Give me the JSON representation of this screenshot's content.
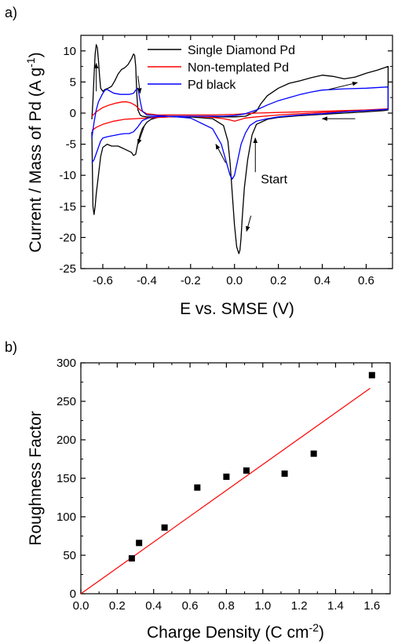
{
  "chart_data": [
    {
      "panel_label": "a)",
      "type": "line",
      "title": "",
      "xlabel": "E vs. SMSE (V)",
      "ylabel_main": "Current / Mass of Pd (A g",
      "ylabel_sup": "-1",
      "ylabel_end": ")",
      "xlim": [
        -0.7,
        0.72
      ],
      "ylim": [
        -25,
        12.5
      ],
      "xticks": [
        -0.6,
        -0.4,
        -0.2,
        0.0,
        0.2,
        0.4,
        0.6
      ],
      "xtick_labels": [
        "-0.6",
        "-0.4",
        "-0.2",
        "0.0",
        "0.2",
        "0.4",
        "0.6"
      ],
      "yticks": [
        -25,
        -20,
        -15,
        -10,
        -5,
        0,
        5,
        10
      ],
      "ytick_labels": [
        "-25",
        "-20",
        "-15",
        "-10",
        "-5",
        "0",
        "5",
        "10"
      ],
      "legend_position": "top-right",
      "series": [
        {
          "name": "Single Diamond Pd",
          "color": "#000000",
          "x": [
            -0.65,
            -0.645,
            -0.64,
            -0.635,
            -0.63,
            -0.625,
            -0.62,
            -0.615,
            -0.61,
            -0.6,
            -0.59,
            -0.575,
            -0.56,
            -0.545,
            -0.53,
            -0.515,
            -0.5,
            -0.485,
            -0.47,
            -0.46,
            -0.455,
            -0.45,
            -0.445,
            -0.44,
            -0.43,
            -0.42,
            -0.4,
            -0.35,
            -0.3,
            -0.2,
            -0.1,
            -0.05,
            0.0,
            0.05,
            0.1,
            0.12,
            0.15,
            0.2,
            0.25,
            0.3,
            0.35,
            0.4,
            0.45,
            0.5,
            0.55,
            0.6,
            0.65,
            0.7,
            0.7,
            0.68,
            0.6,
            0.5,
            0.4,
            0.3,
            0.2,
            0.15,
            0.1,
            0.08,
            0.06,
            0.045,
            0.035,
            0.03,
            0.025,
            0.02,
            0.01,
            0.0,
            -0.01,
            -0.02,
            -0.03,
            -0.05,
            -0.1,
            -0.2,
            -0.3,
            -0.35,
            -0.38,
            -0.4,
            -0.42,
            -0.43,
            -0.44,
            -0.45,
            -0.46,
            -0.47,
            -0.5,
            -0.53,
            -0.56,
            -0.58,
            -0.6,
            -0.61,
            -0.62,
            -0.63,
            -0.635,
            -0.64,
            -0.645,
            -0.65
          ],
          "y": [
            -1.0,
            2.0,
            6.0,
            9.5,
            11.0,
            10.5,
            8.5,
            6.0,
            4.0,
            3.5,
            3.8,
            4.0,
            4.3,
            5.2,
            6.3,
            7.0,
            7.3,
            7.8,
            8.7,
            9.5,
            9.3,
            7.5,
            3.0,
            0.5,
            -0.3,
            -0.5,
            -0.6,
            -0.6,
            -0.6,
            -0.6,
            -0.6,
            -0.6,
            -0.6,
            -0.5,
            0.3,
            1.5,
            2.8,
            4.0,
            4.8,
            5.2,
            5.7,
            6.1,
            5.9,
            5.5,
            5.8,
            6.4,
            6.9,
            7.5,
            0.5,
            0.4,
            0.2,
            0.0,
            -0.2,
            -0.4,
            -0.7,
            -1.0,
            -1.8,
            -3.5,
            -7.5,
            -12.0,
            -17.0,
            -20.0,
            -22.0,
            -22.6,
            -21.5,
            -18.0,
            -13.0,
            -8.0,
            -4.5,
            -2.0,
            -0.9,
            -0.6,
            -0.6,
            -0.7,
            -1.0,
            -1.5,
            -2.5,
            -3.5,
            -4.8,
            -6.6,
            -6.8,
            -6.3,
            -5.8,
            -5.3,
            -5.3,
            -5.0,
            -5.5,
            -7.0,
            -10.0,
            -13.0,
            -15.0,
            -16.3,
            -15.0,
            -3.0
          ]
        },
        {
          "name": "Non-templated Pd",
          "color": "#ff0000",
          "x": [
            -0.65,
            -0.63,
            -0.6,
            -0.57,
            -0.54,
            -0.51,
            -0.49,
            -0.47,
            -0.45,
            -0.43,
            -0.4,
            -0.35,
            -0.3,
            -0.2,
            -0.1,
            0.0,
            0.1,
            0.2,
            0.3,
            0.4,
            0.5,
            0.6,
            0.7,
            0.7,
            0.6,
            0.5,
            0.4,
            0.3,
            0.2,
            0.1,
            0.05,
            0.02,
            0.0,
            -0.02,
            -0.05,
            -0.1,
            -0.2,
            -0.3,
            -0.4,
            -0.5,
            -0.55,
            -0.6,
            -0.63,
            -0.65
          ],
          "y": [
            -0.5,
            0.2,
            0.9,
            1.3,
            1.6,
            1.8,
            1.8,
            1.6,
            1.2,
            0.5,
            -0.1,
            -0.3,
            -0.3,
            -0.3,
            -0.3,
            -0.2,
            0.0,
            0.1,
            0.2,
            0.3,
            0.4,
            0.5,
            0.6,
            0.7,
            0.5,
            0.3,
            0.1,
            -0.1,
            -0.3,
            -0.6,
            -0.8,
            -1.1,
            -1.3,
            -1.1,
            -0.9,
            -0.7,
            -0.5,
            -0.6,
            -0.8,
            -1.0,
            -1.3,
            -1.8,
            -2.3,
            -2.8
          ]
        },
        {
          "name": "Pd black",
          "color": "#0000ff",
          "x": [
            -0.65,
            -0.64,
            -0.63,
            -0.62,
            -0.61,
            -0.6,
            -0.59,
            -0.58,
            -0.57,
            -0.55,
            -0.52,
            -0.5,
            -0.48,
            -0.46,
            -0.45,
            -0.44,
            -0.43,
            -0.42,
            -0.4,
            -0.3,
            -0.2,
            -0.1,
            -0.05,
            0.0,
            0.05,
            0.1,
            0.15,
            0.2,
            0.25,
            0.3,
            0.35,
            0.4,
            0.5,
            0.6,
            0.7,
            0.7,
            0.6,
            0.5,
            0.4,
            0.3,
            0.2,
            0.15,
            0.1,
            0.07,
            0.05,
            0.03,
            0.015,
            0.0,
            -0.01,
            -0.02,
            -0.04,
            -0.06,
            -0.1,
            -0.2,
            -0.3,
            -0.38,
            -0.42,
            -0.44,
            -0.46,
            -0.48,
            -0.5,
            -0.52,
            -0.55,
            -0.58,
            -0.6,
            -0.61,
            -0.62,
            -0.63,
            -0.64,
            -0.65
          ],
          "y": [
            -4.0,
            -1.5,
            0.5,
            1.8,
            2.5,
            3.2,
            3.7,
            3.8,
            3.6,
            3.2,
            3.0,
            3.0,
            3.0,
            3.2,
            3.7,
            4.0,
            2.0,
            0.3,
            -0.3,
            -0.5,
            -0.5,
            -0.5,
            -0.5,
            -0.4,
            -0.1,
            0.5,
            1.3,
            2.0,
            2.5,
            3.0,
            3.4,
            3.7,
            3.9,
            4.0,
            4.2,
            0.6,
            0.4,
            0.2,
            -0.1,
            -0.3,
            -0.6,
            -0.9,
            -1.3,
            -2.0,
            -3.2,
            -5.0,
            -7.5,
            -10.0,
            -10.6,
            -10.0,
            -7.5,
            -5.0,
            -2.5,
            -0.8,
            -0.5,
            -0.6,
            -1.2,
            -2.2,
            -3.0,
            -3.3,
            -3.3,
            -3.4,
            -3.6,
            -3.8,
            -4.0,
            -4.5,
            -5.5,
            -6.5,
            -7.5,
            -8.0
          ]
        }
      ],
      "annotations": [
        {
          "text": "Start",
          "x": 0.12,
          "y": -11.3
        },
        {
          "arrow": true,
          "from": [
            -0.63,
            3.5
          ],
          "to": [
            -0.63,
            8.0
          ]
        },
        {
          "arrow": true,
          "from": [
            -0.44,
            6.0
          ],
          "to": [
            -0.43,
            3.2
          ]
        },
        {
          "arrow": true,
          "from": [
            -0.41,
            -2.0
          ],
          "to": [
            -0.44,
            -5.0
          ]
        },
        {
          "arrow": true,
          "from": [
            -0.04,
            -8.0
          ],
          "to": [
            -0.085,
            -5.0
          ]
        },
        {
          "arrow": true,
          "from": [
            0.075,
            -16.5
          ],
          "to": [
            0.055,
            -19.0
          ]
        },
        {
          "arrow": true,
          "from": [
            0.095,
            -9.5
          ],
          "to": [
            0.095,
            -4.0
          ]
        },
        {
          "arrow": true,
          "from": [
            0.43,
            3.8
          ],
          "to": [
            0.56,
            4.9
          ]
        },
        {
          "arrow": true,
          "from": [
            0.55,
            -0.9
          ],
          "to": [
            0.4,
            -0.9
          ]
        }
      ]
    },
    {
      "panel_label": "b)",
      "type": "scatter",
      "title": "",
      "xlabel_main": "Charge Density (C cm",
      "xlabel_sup": "-2",
      "xlabel_end": ")",
      "ylabel": "Roughness Factor",
      "xlim": [
        0.0,
        1.7
      ],
      "ylim": [
        0,
        300
      ],
      "xticks": [
        0.0,
        0.2,
        0.4,
        0.6,
        0.8,
        1.0,
        1.2,
        1.4,
        1.6
      ],
      "xtick_labels": [
        "0.0",
        "0.2",
        "0.4",
        "0.6",
        "0.8",
        "1.0",
        "1.2",
        "1.4",
        "1.6"
      ],
      "yticks": [
        0,
        50,
        100,
        150,
        200,
        250,
        300
      ],
      "ytick_labels": [
        "0",
        "50",
        "100",
        "150",
        "200",
        "250",
        "300"
      ],
      "points": {
        "color": "#000000",
        "x": [
          0.28,
          0.32,
          0.46,
          0.64,
          0.8,
          0.91,
          1.12,
          1.28,
          1.6
        ],
        "y": [
          46,
          66,
          86,
          138,
          152,
          160,
          156,
          182,
          284
        ]
      },
      "fit_line": {
        "color": "#ff0000",
        "x": [
          0.0,
          1.59
        ],
        "y": [
          0,
          267
        ]
      }
    }
  ]
}
